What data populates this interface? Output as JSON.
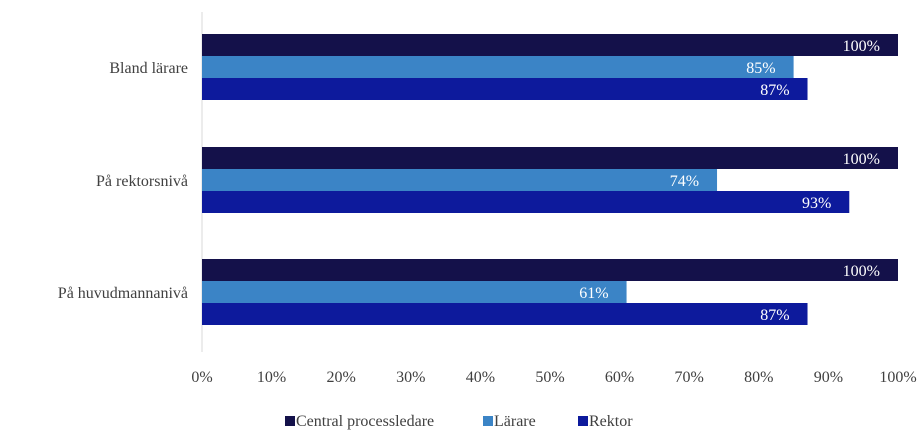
{
  "chart_data": {
    "type": "bar",
    "orientation": "horizontal",
    "title": "",
    "xlabel": "",
    "ylabel": "",
    "categories": [
      "Bland lärare",
      "På rektorsnivå",
      "På huvudmannanivå"
    ],
    "series": [
      {
        "name": "Central processledare",
        "color": "#14114a",
        "values": [
          100,
          100,
          100
        ],
        "labels": [
          "100%",
          "100%",
          "100%"
        ]
      },
      {
        "name": "Lärare",
        "color": "#3b84c6",
        "values": [
          85,
          74,
          61
        ],
        "labels": [
          "85%",
          "74%",
          "61%"
        ]
      },
      {
        "name": "Rektor",
        "color": "#0d1a9c",
        "values": [
          87,
          93,
          87
        ],
        "labels": [
          "87%",
          "93%",
          "87%"
        ]
      }
    ],
    "xlim": [
      0,
      100
    ],
    "xticks": [
      0,
      10,
      20,
      30,
      40,
      50,
      60,
      70,
      80,
      90,
      100
    ],
    "xtick_labels": [
      "0%",
      "10%",
      "20%",
      "30%",
      "40%",
      "50%",
      "60%",
      "70%",
      "80%",
      "90%",
      "100%"
    ],
    "grid": false,
    "legend_position": "bottom"
  }
}
